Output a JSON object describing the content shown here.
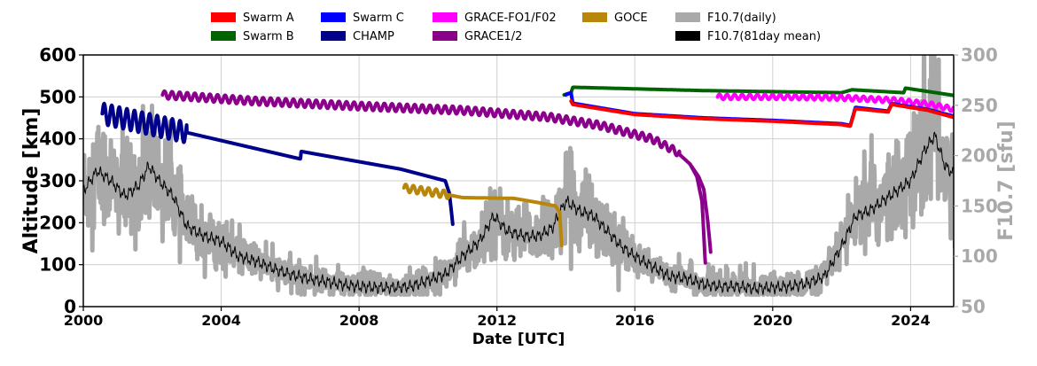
{
  "chart_data": {
    "type": "line",
    "xlabel": "Date [UTC]",
    "ylabel": "Altitude [km]",
    "y2label": "F10.7 [sfu]",
    "xlim": [
      "2000-01-01",
      "2025-04-01"
    ],
    "ylim": [
      0,
      600
    ],
    "y2lim": [
      50,
      300
    ],
    "x_ticks": [
      "2000",
      "2004",
      "2008",
      "2012",
      "2016",
      "2020",
      "2024"
    ],
    "y_ticks": [
      0,
      100,
      200,
      300,
      400,
      500,
      600
    ],
    "y2_ticks": [
      50,
      100,
      150,
      200,
      250,
      300
    ],
    "grid": true,
    "legend_position": "top",
    "legend": [
      {
        "label": "Swarm A",
        "color": "#ff0000"
      },
      {
        "label": "Swarm B",
        "color": "#006400"
      },
      {
        "label": "Swarm C",
        "color": "#0000ff"
      },
      {
        "label": "CHAMP",
        "color": "#00008b"
      },
      {
        "label": "GRACE-FO1/F02",
        "color": "#ff00ff"
      },
      {
        "label": "GRACE1/2",
        "color": "#8b008b"
      },
      {
        "label": "GOCE",
        "color": "#b8860b"
      },
      {
        "label": "F10.7(daily)",
        "color": "#a9a9a9"
      },
      {
        "label": "F10.7(81day mean)",
        "color": "#000000"
      }
    ],
    "altitude_series": [
      {
        "name": "CHAMP",
        "color": "#00008b",
        "axis": "left",
        "x": [
          2000.55,
          2003.0,
          2006.3,
          2006.32,
          2009.2,
          2010.5,
          2010.62,
          2010.72
        ],
        "y": [
          460,
          415,
          352,
          370,
          328,
          300,
          270,
          195
        ],
        "oscillation": 25,
        "osc_period": 0.22,
        "osc_end": 2003.0
      },
      {
        "name": "GRACE1/2",
        "color": "#8b008b",
        "axis": "left",
        "x": [
          2002.3,
          2005.0,
          2008.0,
          2011.0,
          2013.5,
          2015.0,
          2016.5,
          2017.2,
          2017.6,
          2017.8,
          2017.95,
          2018.05
        ],
        "y": [
          505,
          490,
          478,
          468,
          452,
          432,
          400,
          370,
          340,
          310,
          250,
          95
        ],
        "oscillation": 9,
        "osc_period": 0.22,
        "osc_end": 2017.3
      },
      {
        "name": "GRACE1/2",
        "color": "#8b008b",
        "axis": "left",
        "x": [
          2017.6,
          2017.85,
          2018.0,
          2018.12,
          2018.2
        ],
        "y": [
          340,
          310,
          280,
          200,
          130
        ],
        "oscillation": 0,
        "osc_period": 0.22,
        "osc_end": 2017.6
      },
      {
        "name": "GOCE",
        "color": "#b8860b",
        "axis": "left",
        "x": [
          2009.3,
          2010.5,
          2011.0,
          2012.5,
          2013.2,
          2013.7,
          2013.82,
          2013.88
        ],
        "y": [
          283,
          268,
          260,
          258,
          248,
          240,
          225,
          140
        ],
        "oscillation": 9,
        "osc_period": 0.22,
        "osc_end": 2010.6
      },
      {
        "name": "Swarm B",
        "color": "#006400",
        "axis": "left",
        "x": [
          2013.95,
          2014.15,
          2014.2,
          2018.0,
          2022.0,
          2022.3,
          2023.8,
          2023.85,
          2025.3
        ],
        "y": [
          505,
          510,
          523,
          515,
          510,
          517,
          510,
          521,
          503
        ],
        "oscillation": 0,
        "osc_period": 0.22,
        "osc_end": 2013.9
      },
      {
        "name": "GRACE-FO1/F02",
        "color": "#ff00ff",
        "axis": "left",
        "x": [
          2018.4,
          2020.0,
          2022.0,
          2023.5,
          2024.5,
          2025.3
        ],
        "y": [
          500,
          500,
          498,
          492,
          483,
          470
        ],
        "oscillation": 6,
        "osc_period": 0.22,
        "osc_end": 2025.3
      },
      {
        "name": "Swarm C",
        "color": "#0000ff",
        "axis": "left",
        "x": [
          2014.0,
          2014.15,
          2014.2,
          2016.0,
          2018.0,
          2020.0,
          2022.0,
          2022.25,
          2022.4,
          2023.35,
          2023.45,
          2024.5,
          2025.3
        ],
        "y": [
          505,
          510,
          485,
          460,
          450,
          444,
          436,
          432,
          475,
          466,
          484,
          470,
          453
        ],
        "oscillation": 0,
        "osc_period": 0.22,
        "osc_end": 2013.9
      },
      {
        "name": "Swarm A",
        "color": "#ff0000",
        "axis": "left",
        "x": [
          2014.15,
          2014.2,
          2016.0,
          2018.0,
          2020.0,
          2022.0,
          2022.25,
          2022.4,
          2023.35,
          2023.45,
          2024.5,
          2025.3
        ],
        "y": [
          490,
          482,
          458,
          448,
          442,
          434,
          430,
          472,
          464,
          482,
          468,
          450
        ],
        "oscillation": 0,
        "osc_period": 0.22,
        "osc_end": 2014.0
      }
    ],
    "f107_mean": {
      "name": "F10.7(81day mean)",
      "color": "#000000",
      "axis": "right",
      "x": [
        2000.0,
        2000.4,
        2000.8,
        2001.2,
        2001.6,
        2001.9,
        2002.2,
        2002.6,
        2003.0,
        2003.5,
        2004.0,
        2004.5,
        2005.0,
        2005.5,
        2006.0,
        2006.5,
        2007.0,
        2007.5,
        2008.0,
        2008.5,
        2009.0,
        2009.5,
        2010.0,
        2010.5,
        2011.0,
        2011.5,
        2011.9,
        2012.3,
        2012.8,
        2013.2,
        2013.6,
        2014.0,
        2014.4,
        2014.8,
        2015.2,
        2015.6,
        2016.0,
        2016.5,
        2017.0,
        2017.5,
        2018.0,
        2018.5,
        2019.0,
        2019.5,
        2020.0,
        2020.5,
        2021.0,
        2021.5,
        2022.0,
        2022.4,
        2022.8,
        2023.2,
        2023.6,
        2024.0,
        2024.4,
        2024.7,
        2025.0,
        2025.3
      ],
      "y": [
        165,
        185,
        175,
        160,
        170,
        190,
        175,
        160,
        130,
        120,
        115,
        100,
        95,
        88,
        82,
        78,
        75,
        72,
        70,
        69,
        69,
        70,
        76,
        82,
        100,
        115,
        140,
        125,
        120,
        120,
        128,
        155,
        145,
        140,
        125,
        110,
        100,
        90,
        80,
        78,
        72,
        70,
        70,
        68,
        69,
        70,
        73,
        80,
        110,
        140,
        145,
        155,
        165,
        175,
        205,
        220,
        190,
        180
      ]
    },
    "f107_daily": {
      "name": "F10.7(daily)",
      "color": "#a9a9a9",
      "axis": "right",
      "noise_sd": 28,
      "sample_step_days": 4
    }
  }
}
